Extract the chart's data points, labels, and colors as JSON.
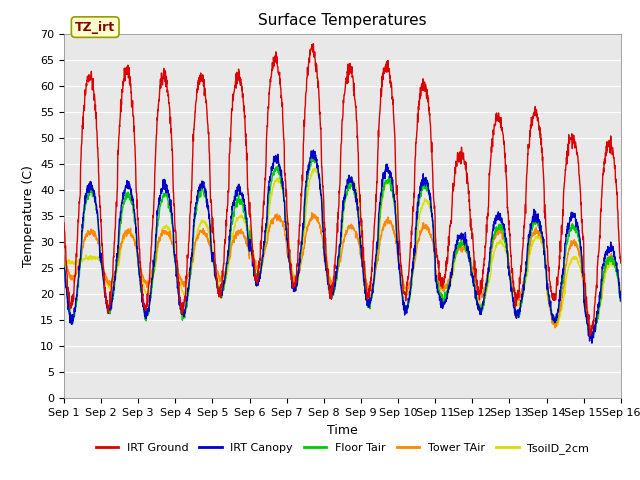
{
  "title": "Surface Temperatures",
  "xlabel": "Time",
  "ylabel": "Temperature (C)",
  "ylim": [
    0,
    70
  ],
  "xlim": [
    0,
    15
  ],
  "xtick_labels": [
    "Sep 1",
    "Sep 2",
    "Sep 3",
    "Sep 4",
    "Sep 5",
    "Sep 6",
    "Sep 7",
    "Sep 8",
    "Sep 9",
    "Sep 10",
    "Sep 11",
    "Sep 12",
    "Sep 13",
    "Sep 14",
    "Sep 15",
    "Sep 16"
  ],
  "xtick_positions": [
    0,
    1,
    2,
    3,
    4,
    5,
    6,
    7,
    8,
    9,
    10,
    11,
    12,
    13,
    14,
    15
  ],
  "ytick_positions": [
    0,
    5,
    10,
    15,
    20,
    25,
    30,
    35,
    40,
    45,
    50,
    55,
    60,
    65,
    70
  ],
  "legend_labels": [
    "IRT Ground",
    "IRT Canopy",
    "Floor Tair",
    "Tower TAir",
    "TsoilD_2cm"
  ],
  "line_colors": [
    "#dd0000",
    "#0000cc",
    "#00cc00",
    "#ff8800",
    "#dddd00"
  ],
  "annotation_text": "TZ_irt",
  "background_color": "#e8e8e8",
  "figure_background": "#ffffff",
  "title_fontsize": 11,
  "axis_label_fontsize": 9,
  "tick_fontsize": 8,
  "legend_fontsize": 8,
  "days": 15,
  "points_per_day": 144,
  "irt_ground_peaks": [
    62,
    63,
    62,
    62,
    62,
    65,
    67,
    63,
    64,
    60,
    47,
    54,
    55,
    50,
    49
  ],
  "irt_ground_troughs": [
    18,
    17,
    17,
    17,
    20,
    23,
    21,
    20,
    20,
    20,
    22,
    20,
    19,
    19,
    13
  ],
  "irt_canopy_peaks": [
    41,
    41,
    41,
    41,
    40,
    46,
    47,
    42,
    44,
    42,
    31,
    35,
    35,
    35,
    29
  ],
  "irt_canopy_troughs": [
    15,
    17,
    16,
    16,
    20,
    22,
    21,
    20,
    18,
    17,
    18,
    17,
    16,
    15,
    12
  ],
  "floor_tair_peaks": [
    40,
    39,
    39,
    40,
    38,
    44,
    46,
    41,
    42,
    41,
    30,
    33,
    34,
    33,
    27
  ],
  "floor_tair_troughs": [
    15,
    17,
    16,
    16,
    20,
    23,
    21,
    20,
    18,
    17,
    19,
    17,
    16,
    15,
    12
  ],
  "tower_tair_peaks": [
    32,
    32,
    32,
    32,
    32,
    35,
    35,
    33,
    34,
    33,
    29,
    32,
    32,
    30,
    27
  ],
  "tower_tair_troughs": [
    23,
    22,
    22,
    22,
    23,
    25,
    23,
    22,
    21,
    21,
    21,
    20,
    19,
    14,
    13
  ],
  "tsoil_peaks": [
    27,
    32,
    33,
    34,
    35,
    42,
    44,
    42,
    42,
    38,
    30,
    30,
    31,
    27,
    26
  ],
  "tsoil_troughs": [
    26,
    21,
    20,
    20,
    21,
    24,
    22,
    21,
    20,
    20,
    19,
    18,
    18,
    14,
    13
  ]
}
